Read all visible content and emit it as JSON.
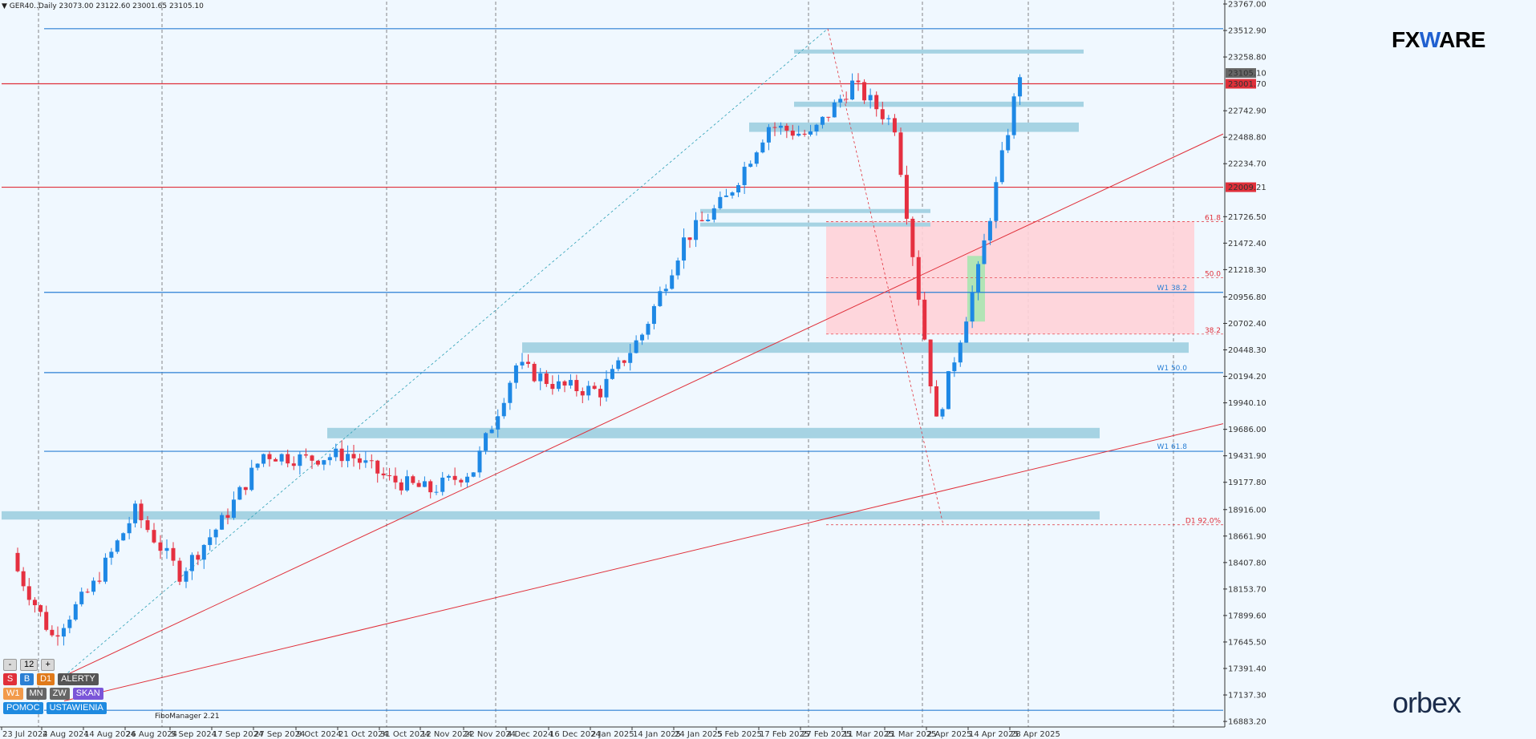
{
  "header": {
    "symbol": "GER40..Daily",
    "ohlc": "23073.00 23122.60 23001.65 23105.10"
  },
  "brand": {
    "top_logo": "FXWARE",
    "bottom_logo": "orbex"
  },
  "indicator_label": "FiboManager 2.21",
  "controls": {
    "row1": [
      "-",
      "12",
      "+"
    ],
    "row2": [
      "S",
      "B",
      "D1",
      "ALERTY"
    ],
    "row3": [
      "W1",
      "MN",
      "ZW",
      "SKAN"
    ],
    "row4": [
      "POMOC",
      "USTAWIENIA"
    ]
  },
  "colors": {
    "bull": "#1e88e5",
    "bear": "#e53040",
    "zone": "#a6d3e3",
    "fibo_box": "#ffd2d8",
    "green_box": "#a8e6b0",
    "level_blue": "#2a7fd4",
    "level_red": "#e0303a"
  },
  "chart_data": {
    "type": "candlestick",
    "symbol": "GER40",
    "timeframe": "Daily",
    "y_ticks": [
      23767.0,
      23512.9,
      23258.8,
      23105.1,
      23001.7,
      22742.9,
      22488.8,
      22234.7,
      22009.21,
      21726.5,
      21472.4,
      21218.3,
      20956.8,
      20702.4,
      20448.3,
      20194.2,
      19940.1,
      19686.0,
      19431.9,
      19177.8,
      18916.0,
      18661.9,
      18407.8,
      18153.7,
      17899.6,
      17645.5,
      17391.4,
      17137.3,
      16883.2
    ],
    "y_range": [
      16830,
      23790
    ],
    "x_labels": [
      "23 Jul 2024",
      "2 Aug 2024",
      "14 Aug 2024",
      "26 Aug 2024",
      "5 Sep 2024",
      "17 Sep 2024",
      "27 Sep 2024",
      "9 Oct 2024",
      "21 Oct 2024",
      "31 Oct 2024",
      "12 Nov 2024",
      "22 Nov 2024",
      "4 Dec 2024",
      "16 Dec 2024",
      "2 Jan 2025",
      "14 Jan 2025",
      "24 Jan 2025",
      "5 Feb 2025",
      "17 Feb 2025",
      "27 Feb 2025",
      "11 Mar 2025",
      "21 Mar 2025",
      "2 Apr 2025",
      "14 Apr 2025",
      "28 Apr 2025"
    ],
    "current_price": "23105.10",
    "horizontal_levels": [
      {
        "price": 23530,
        "color": "blue"
      },
      {
        "price": 23001.7,
        "color": "red",
        "label": "23001.70"
      },
      {
        "price": 22009.21,
        "color": "red",
        "label": "22009.21"
      },
      {
        "price": 21000,
        "color": "blue",
        "label": "W1 38.2"
      },
      {
        "price": 20230,
        "color": "blue",
        "label": "W1 50.0"
      },
      {
        "price": 19475,
        "color": "blue",
        "label": "W1 61.8"
      },
      {
        "price": 16990,
        "color": "blue"
      }
    ],
    "fibo_levels": [
      {
        "ratio": "61.8",
        "price": 21680
      },
      {
        "ratio": "50.0",
        "price": 21140
      },
      {
        "ratio": "38.2",
        "price": 20600
      },
      {
        "ratio": "D1 92.0%",
        "price": 18770
      }
    ],
    "support_resistance_zones": [
      {
        "from": "17 Feb 2025",
        "price_low": 23300,
        "price_high": 23330
      },
      {
        "from": "17 Feb 2025",
        "price_low": 22780,
        "price_high": 22830
      },
      {
        "from": "5 Feb 2025",
        "price_low": 22540,
        "price_high": 22630
      },
      {
        "from": "24 Jan 2025",
        "price_low": 21770,
        "price_high": 21800
      },
      {
        "from": "24 Jan 2025",
        "price_low": 21640,
        "price_high": 21670
      },
      {
        "from": "4 Dec 2024",
        "price_low": 20420,
        "price_high": 20520
      },
      {
        "from": "9 Oct 2024",
        "price_low": 19600,
        "price_high": 19700
      },
      {
        "from": "23 Jul 2024",
        "price_low": 18820,
        "price_high": 18900
      }
    ],
    "candles_monthly_closes_approx": [
      {
        "date": "23 Jul 2024",
        "close": 18430
      },
      {
        "date": "2 Aug 2024",
        "close": 17700
      },
      {
        "date": "14 Aug 2024",
        "close": 18190
      },
      {
        "date": "26 Aug 2024",
        "close": 18900
      },
      {
        "date": "5 Sep 2024",
        "close": 18300
      },
      {
        "date": "17 Sep 2024",
        "close": 18800
      },
      {
        "date": "27 Sep 2024",
        "close": 19450
      },
      {
        "date": "9 Oct 2024",
        "close": 19400
      },
      {
        "date": "21 Oct 2024",
        "close": 19450
      },
      {
        "date": "31 Oct 2024",
        "close": 19200
      },
      {
        "date": "12 Nov 2024",
        "close": 19100
      },
      {
        "date": "22 Nov 2024",
        "close": 19300
      },
      {
        "date": "4 Dec 2024",
        "close": 20300
      },
      {
        "date": "16 Dec 2024",
        "close": 20100
      },
      {
        "date": "2 Jan 2025",
        "close": 20050
      },
      {
        "date": "14 Jan 2025",
        "close": 20600
      },
      {
        "date": "24 Jan 2025",
        "close": 21500
      },
      {
        "date": "5 Feb 2025",
        "close": 21900
      },
      {
        "date": "17 Feb 2025",
        "close": 22600
      },
      {
        "date": "27 Feb 2025",
        "close": 22500
      },
      {
        "date": "11 Mar 2025",
        "close": 23000
      },
      {
        "date": "21 Mar 2025",
        "close": 22600
      },
      {
        "date": "2 Apr 2025",
        "close": 19750
      },
      {
        "date": "14 Apr 2025",
        "close": 21200
      },
      {
        "date": "28 Apr 2025",
        "close": 23105
      }
    ]
  }
}
